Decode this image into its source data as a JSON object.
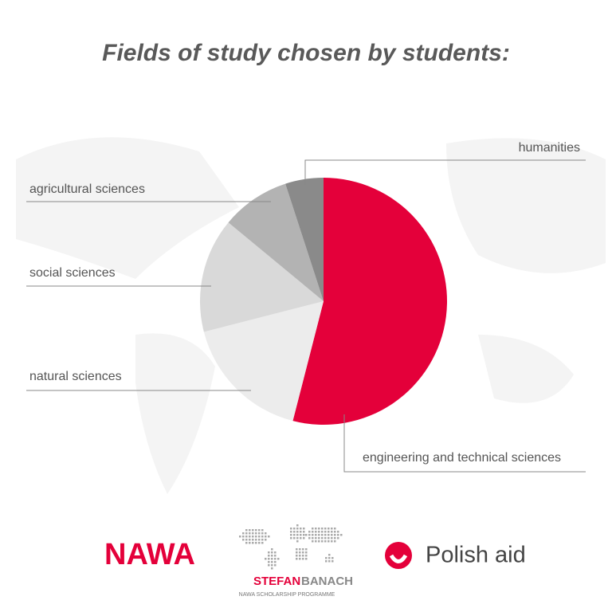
{
  "chart_data": {
    "type": "pie",
    "title": "Fields of study chosen by students:",
    "categories": [
      "engineering and technical sciences",
      "natural sciences",
      "social sciences",
      "agricultural sciences",
      "humanities"
    ],
    "values": [
      54,
      17,
      15,
      9,
      5
    ],
    "colors": [
      "#e4003a",
      "#ececec",
      "#d9d9d9",
      "#b3b3b3",
      "#8a8a8a"
    ]
  },
  "logos": {
    "nawa": "NAWA",
    "banach_first": "STEFAN",
    "banach_last": "BANACH",
    "banach_subtitle": "NAWA SCHOLARSHIP PROGRAMME",
    "polish_aid": "Polish aid"
  }
}
